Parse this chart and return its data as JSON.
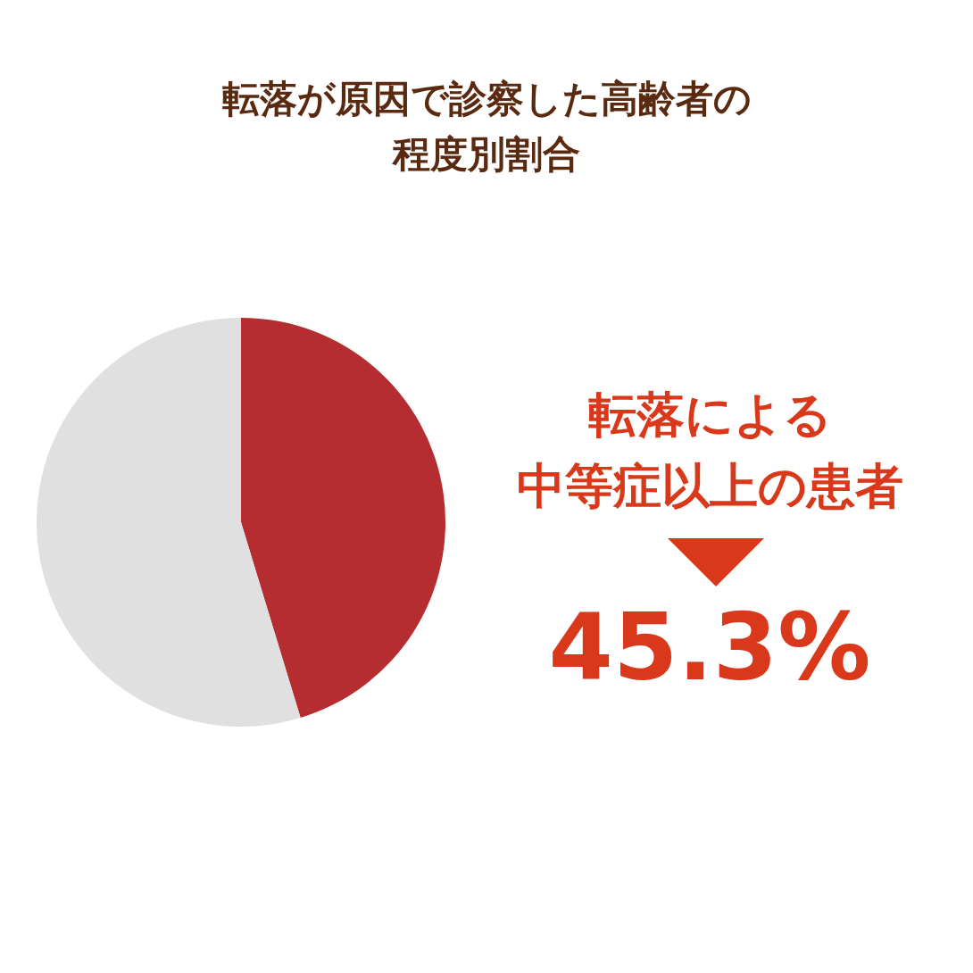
{
  "chart_data": {
    "type": "pie",
    "title": "転落が原因で診察した高齢者の程度別割合",
    "categories": [
      "転落による中等症以上の患者",
      null
    ],
    "values": [
      45.3,
      54.7
    ],
    "colors": [
      "#b52d30",
      "#e0e0e0"
    ],
    "value_labels": [
      "45.3%",
      null
    ],
    "legend": false
  }
}
